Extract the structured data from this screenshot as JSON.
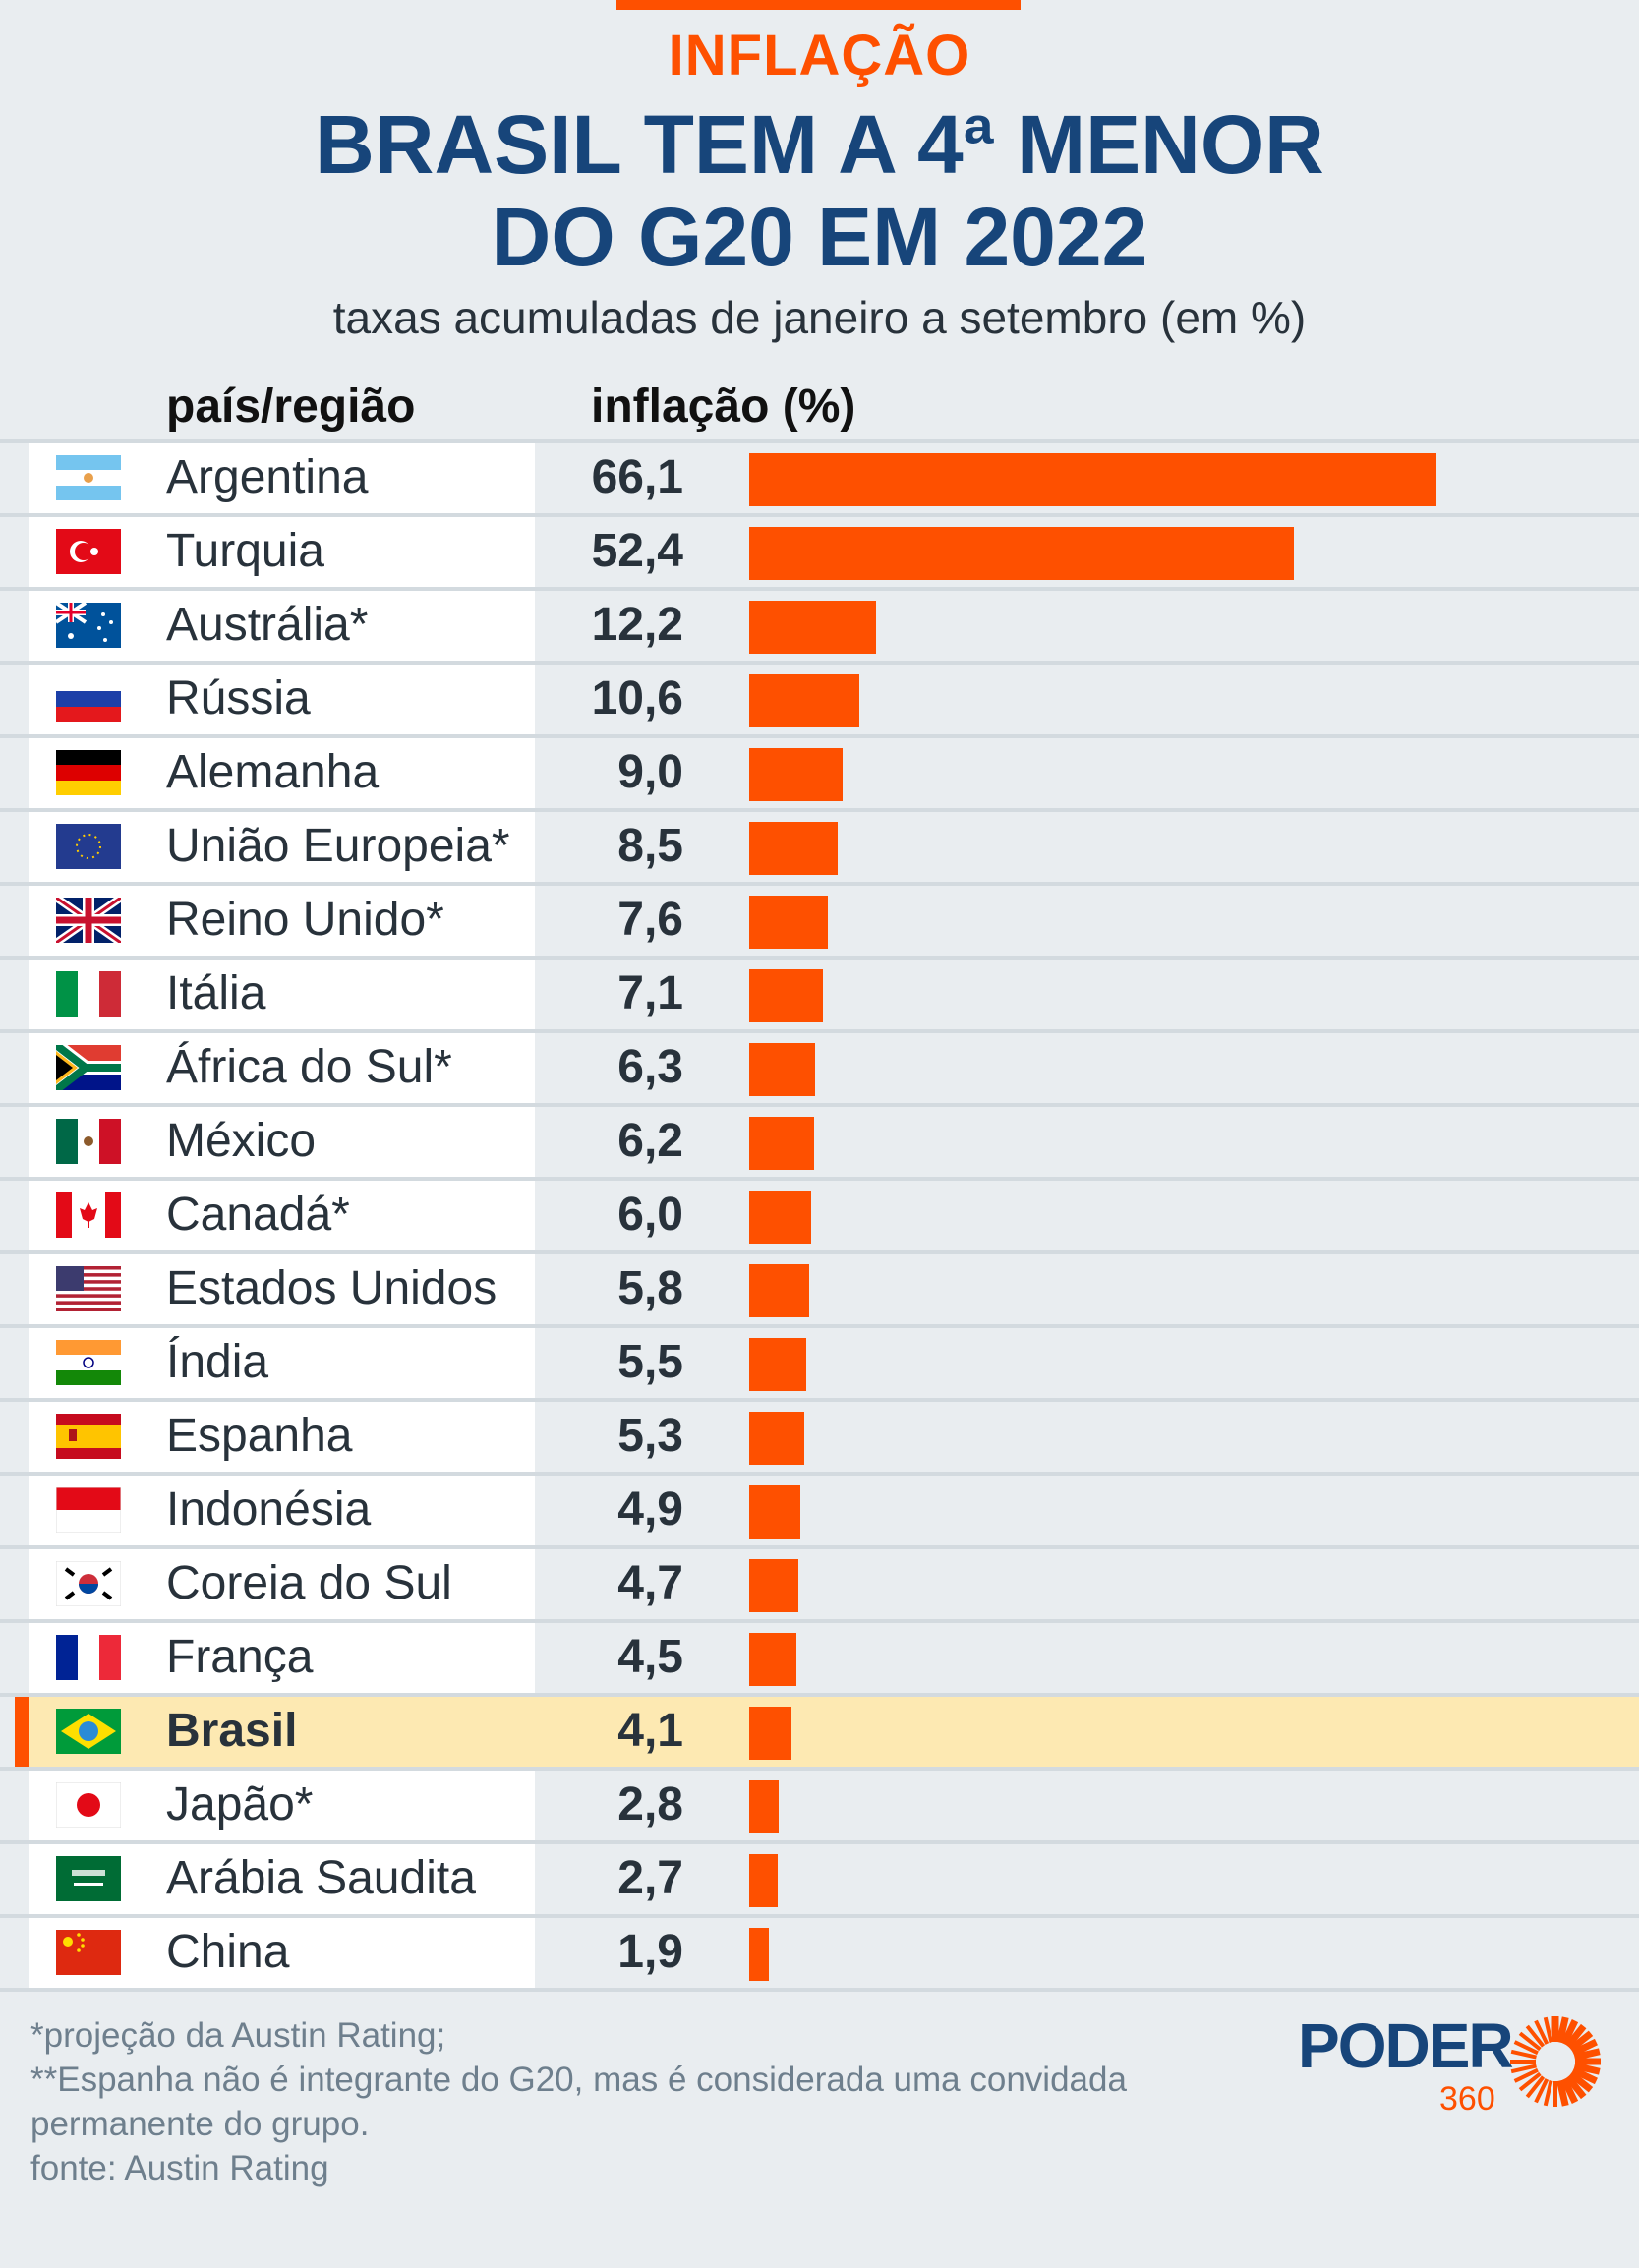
{
  "header": {
    "kicker": "INFLAÇÃO",
    "title_line1": "BRASIL TEM A 4ª MENOR",
    "title_line2": "DO G20 EM 2022",
    "subtitle": "taxas acumuladas de janeiro a setembro (em %)"
  },
  "chart_data": {
    "type": "bar",
    "orientation": "horizontal",
    "column_headers": [
      "país/região",
      "inflação (%)"
    ],
    "categories": [
      "Argentina",
      "Turquia",
      "Austrália*",
      "Rússia",
      "Alemanha",
      "União Europeia*",
      "Reino Unido*",
      "Itália",
      "África do Sul*",
      "México",
      "Canadá*",
      "Estados Unidos",
      "Índia",
      "Espanha",
      "Indonésia",
      "Coreia do Sul",
      "França",
      "Brasil",
      "Japão*",
      "Arábia Saudita",
      "China"
    ],
    "labels": [
      "66,1",
      "52,4",
      "12,2",
      "10,6",
      "9,0",
      "8,5",
      "7,6",
      "7,1",
      "6,3",
      "6,2",
      "6,0",
      "5,8",
      "5,5",
      "5,3",
      "4,9",
      "4,7",
      "4,5",
      "4,1",
      "2,8",
      "2,7",
      "1,9"
    ],
    "values": [
      66.1,
      52.4,
      12.2,
      10.6,
      9.0,
      8.5,
      7.6,
      7.1,
      6.3,
      6.2,
      6.0,
      5.8,
      5.5,
      5.3,
      4.9,
      4.7,
      4.5,
      4.1,
      2.8,
      2.7,
      1.9
    ],
    "flags": [
      "ar",
      "tr",
      "au",
      "ru",
      "de",
      "eu",
      "gb",
      "it",
      "za",
      "mx",
      "ca",
      "us",
      "in",
      "es",
      "id",
      "kr",
      "fr",
      "br",
      "jp",
      "sa",
      "cn"
    ],
    "highlight": "Brasil",
    "bar_color": "#fe5000",
    "highlight_color": "#fde9b2"
  },
  "footer": {
    "notes": [
      "*projeção da Austin Rating;",
      "**Espanha não é integrante do G20, mas é considerada uma convidada",
      "permanente do grupo.",
      "fonte: Austin Rating"
    ],
    "logo_text": "PODER",
    "logo_number": "360"
  }
}
